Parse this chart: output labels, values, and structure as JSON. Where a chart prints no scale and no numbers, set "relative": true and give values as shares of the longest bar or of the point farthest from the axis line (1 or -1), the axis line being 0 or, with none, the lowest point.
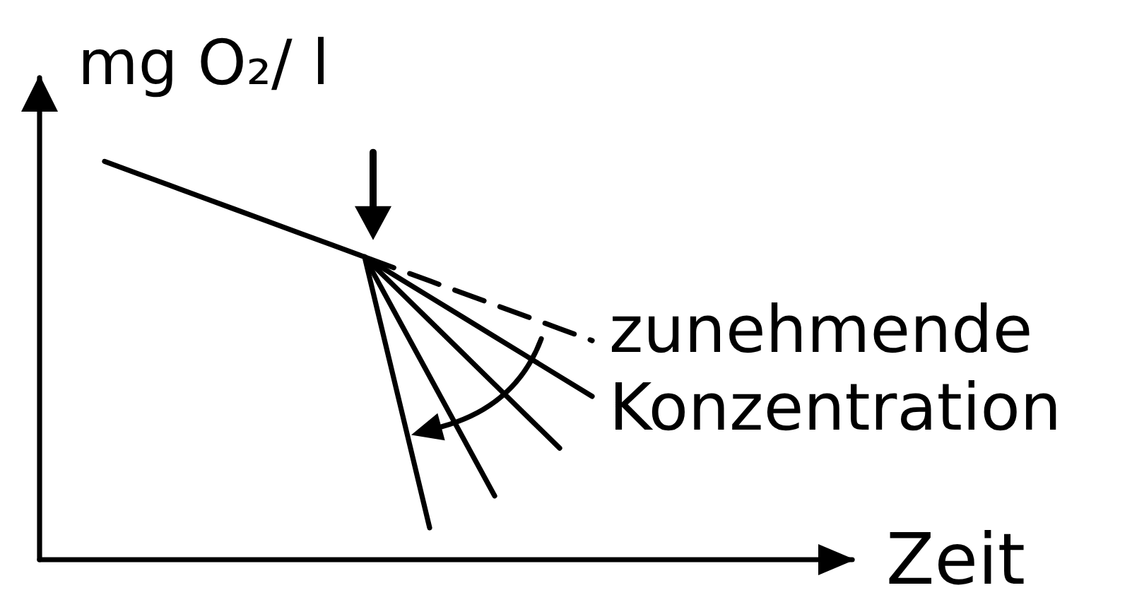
{
  "chart_data": {
    "type": "line",
    "relative": true,
    "xlabel": "Zeit",
    "ylabel": "mg O₂/ l",
    "annotations": [
      "zunehmende Konzentration"
    ],
    "categories": [
      null,
      null,
      null,
      null,
      null,
      null,
      null,
      null,
      null,
      null,
      null,
      null,
      null,
      null,
      null,
      null,
      null,
      null,
      null,
      null,
      null,
      null,
      null,
      null,
      null,
      null
    ],
    "series": [
      {
        "color": "#000000",
        "values": [
          null,
          null,
          1,
          0.97,
          0.94,
          0.91,
          0.88,
          0.85,
          0.82,
          0.79,
          0.76,
          0.42,
          0.08,
          null,
          null,
          null,
          null,
          null,
          null,
          null,
          null,
          null,
          null,
          null,
          null,
          null
        ]
      },
      {
        "color": "#000000",
        "line_style": "dashed",
        "values": [
          null,
          null,
          null,
          null,
          null,
          null,
          null,
          null,
          null,
          null,
          0.76,
          0.73,
          0.7,
          0.67,
          0.64,
          0.61,
          0.58,
          0.55,
          null,
          null,
          null,
          null,
          null,
          null,
          null,
          null
        ]
      },
      {
        "color": "#000000",
        "values": [
          null,
          null,
          null,
          null,
          null,
          null,
          null,
          null,
          null,
          null,
          0.76,
          0.71,
          0.66,
          0.61,
          0.56,
          0.51,
          0.46,
          0.41,
          null,
          null,
          null,
          null,
          null,
          null,
          null,
          null
        ]
      },
      {
        "color": "#000000",
        "values": [
          null,
          null,
          null,
          null,
          null,
          null,
          null,
          null,
          null,
          null,
          0.76,
          0.68,
          0.6,
          0.52,
          0.44,
          0.36,
          0.28,
          null,
          null,
          null,
          null,
          null,
          null,
          null,
          null,
          null
        ]
      },
      {
        "color": "#000000",
        "values": [
          null,
          null,
          null,
          null,
          null,
          null,
          null,
          null,
          null,
          null,
          0.76,
          0.61,
          0.46,
          0.31,
          0.16,
          null,
          null,
          null,
          null,
          null,
          null,
          null,
          null,
          null,
          null,
          null
        ]
      }
    ]
  }
}
